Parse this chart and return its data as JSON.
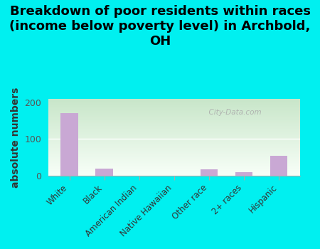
{
  "title": "Breakdown of poor residents within races\n(income below poverty level) in Archbold,\nOH",
  "categories": [
    "White",
    "Black",
    "American Indian",
    "Native Hawaiian",
    "Other race",
    "2+ races",
    "Hispanic"
  ],
  "values": [
    170,
    20,
    0,
    0,
    18,
    10,
    55
  ],
  "bar_color": "#c9a8d4",
  "ylabel": "absolute numbers",
  "ylim": [
    0,
    210
  ],
  "yticks": [
    0,
    100,
    200
  ],
  "background_outer": "#00f0f0",
  "plot_bg_top": "#d4edda",
  "plot_bg_bottom": "#f8fff8",
  "title_fontsize": 13,
  "ylabel_fontsize": 10,
  "watermark": "  City-Data.com"
}
